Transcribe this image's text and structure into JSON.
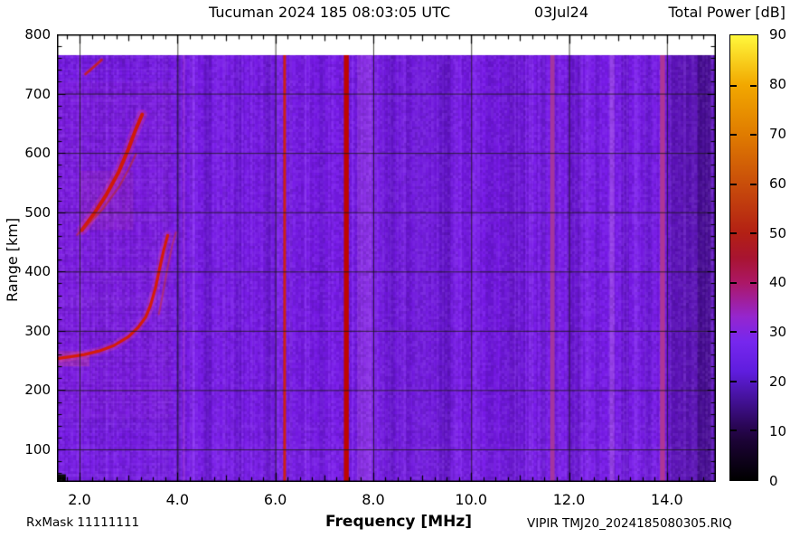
{
  "header": {
    "title": "Tucuman 2024 185 08:03:05 UTC",
    "date": "03Jul24",
    "colorbar_title": "Total Power [dB]"
  },
  "footer": {
    "rxmask": "RxMask 11111111",
    "xlabel": "Frequency [MHz]",
    "filename": "VIPIR  TMJ20_2024185080305.RIQ"
  },
  "ylabel": "Range [km]",
  "chart_data": {
    "type": "heatmap",
    "title": "Tucuman 2024 185 08:03:05 UTC",
    "subtitle": "03Jul24",
    "xlabel": "Frequency [MHz]",
    "ylabel": "Range [km]",
    "zlabel": "Total Power [dB]",
    "x_range_mhz": [
      1.538,
      15.0
    ],
    "y_range_km": [
      45,
      800
    ],
    "data_top_km": 765,
    "grid": true,
    "x_major_ticks": [
      2,
      4,
      6,
      8,
      10,
      12,
      14
    ],
    "x_tick_labels": [
      "2.0",
      "4.0",
      "6.0",
      "8.0",
      "10.0",
      "12.0",
      "14.0"
    ],
    "x_minor_step": 0.25,
    "y_major_ticks": [
      800,
      700,
      600,
      500,
      400,
      300,
      200,
      100
    ],
    "y_tick_labels": [
      "800",
      "700",
      "600",
      "500",
      "400",
      "300",
      "200",
      "100"
    ],
    "y_minor_step": 20,
    "background_db": 22,
    "base_color": "#771AE8",
    "grid_color": "rgba(25,25,18,0.8)",
    "noise_seed": 42,
    "colorbar": {
      "range_db": [
        0,
        90
      ],
      "tick_step": 10,
      "labels": [
        "90",
        "80",
        "70",
        "60",
        "50",
        "40",
        "30",
        "20",
        "10",
        "0"
      ],
      "stops": [
        [
          0,
          "#000000"
        ],
        [
          8,
          "#1C0336"
        ],
        [
          11,
          "#2A0656"
        ],
        [
          22,
          "#5F1DDE"
        ],
        [
          28,
          "#7627EE"
        ],
        [
          33,
          "#9526CE"
        ],
        [
          40,
          "#AC1766"
        ],
        [
          45,
          "#A81430"
        ],
        [
          50,
          "#B32014"
        ],
        [
          60,
          "#C94E0A"
        ],
        [
          70,
          "#E07C00"
        ],
        [
          80,
          "#F2A800"
        ],
        [
          90,
          "#FFF83C"
        ]
      ]
    },
    "shade_bands": [
      {
        "f": 8.9,
        "w": 1.5,
        "c": "#3E0B8E",
        "a": 0.1
      },
      {
        "f": 10.85,
        "w": 0.5,
        "c": "#3E0B8E",
        "a": 0.15
      },
      {
        "f": 14.55,
        "w": 0.92,
        "c": "#2A0660",
        "a": 0.35
      },
      {
        "f": 14.77,
        "w": 0.28,
        "c": "#1E0448",
        "a": 0.3
      },
      {
        "f": 2.03,
        "w": 0.07,
        "c": "#9B45FF",
        "a": 0.3
      },
      {
        "f": 2.55,
        "w": 0.05,
        "c": "#9B45FF",
        "a": 0.18
      },
      {
        "f": 3.05,
        "w": 0.05,
        "c": "#3E0B8E",
        "a": 0.12
      },
      {
        "f": 3.75,
        "w": 0.06,
        "c": "#9B45FF",
        "a": 0.2
      },
      {
        "f": 4.02,
        "w": 0.1,
        "c": "#3E0B8E",
        "a": 0.25
      },
      {
        "f": 4.13,
        "w": 0.05,
        "c": "#C050C8",
        "a": 0.3
      },
      {
        "f": 4.32,
        "w": 0.09,
        "c": "#9B45FF",
        "a": 0.35
      },
      {
        "f": 4.62,
        "w": 0.16,
        "c": "#3E0B8E",
        "a": 0.25
      },
      {
        "f": 4.96,
        "w": 0.07,
        "c": "#9B45FF",
        "a": 0.32
      },
      {
        "f": 5.25,
        "w": 0.12,
        "c": "#3E0B8E",
        "a": 0.18
      },
      {
        "f": 5.52,
        "w": 0.06,
        "c": "#9B45FF",
        "a": 0.26
      },
      {
        "f": 5.85,
        "w": 0.14,
        "c": "#3E0B8E",
        "a": 0.22
      },
      {
        "f": 6.06,
        "w": 0.05,
        "c": "#9B45FF",
        "a": 0.25
      },
      {
        "f": 6.31,
        "w": 0.06,
        "c": "#9B45FF",
        "a": 0.3
      },
      {
        "f": 6.62,
        "w": 0.05,
        "c": "#9B45FF",
        "a": 0.18
      },
      {
        "f": 6.95,
        "w": 0.12,
        "c": "#3E0B8E",
        "a": 0.18
      },
      {
        "f": 7.17,
        "w": 0.05,
        "c": "#9B45FF",
        "a": 0.22
      },
      {
        "f": 7.58,
        "w": 0.05,
        "c": "#9B45FF",
        "a": 0.28
      },
      {
        "f": 7.82,
        "w": 0.3,
        "c": "#A34CE8",
        "a": 0.45
      },
      {
        "f": 8.06,
        "w": 0.06,
        "c": "#9B45FF",
        "a": 0.28
      },
      {
        "f": 8.38,
        "w": 0.12,
        "c": "#3E0B8E",
        "a": 0.15
      },
      {
        "f": 8.64,
        "w": 0.06,
        "c": "#9B45FF",
        "a": 0.22
      },
      {
        "f": 9.12,
        "w": 0.05,
        "c": "#9B45FF",
        "a": 0.18
      },
      {
        "f": 9.45,
        "w": 0.22,
        "c": "#3E0B8E",
        "a": 0.18
      },
      {
        "f": 9.78,
        "w": 0.06,
        "c": "#9B45FF",
        "a": 0.22
      },
      {
        "f": 10.06,
        "w": 0.08,
        "c": "#9B45FF",
        "a": 0.28
      },
      {
        "f": 10.38,
        "w": 0.16,
        "c": "#3E0B8E",
        "a": 0.16
      },
      {
        "f": 11.22,
        "w": 0.1,
        "c": "#9B45FF",
        "a": 0.32
      },
      {
        "f": 11.47,
        "w": 0.1,
        "c": "#3E0B8E",
        "a": 0.2
      },
      {
        "f": 11.79,
        "w": 0.06,
        "c": "#9B45FF",
        "a": 0.28
      },
      {
        "f": 12.12,
        "w": 0.26,
        "c": "#3E0B8E",
        "a": 0.2
      },
      {
        "f": 12.36,
        "w": 0.08,
        "c": "#9B45FF",
        "a": 0.28
      },
      {
        "f": 12.58,
        "w": 0.1,
        "c": "#3E0B8E",
        "a": 0.15
      },
      {
        "f": 12.88,
        "w": 0.1,
        "c": "#AA55E8",
        "a": 0.5
      },
      {
        "f": 13.15,
        "w": 0.15,
        "c": "#3E0B8E",
        "a": 0.2
      },
      {
        "f": 13.37,
        "w": 0.07,
        "c": "#9B45FF",
        "a": 0.3
      },
      {
        "f": 13.62,
        "w": 0.15,
        "c": "#3E0B8E",
        "a": 0.18
      },
      {
        "f": 14.06,
        "w": 0.1,
        "c": "#3E0B8E",
        "a": 0.3
      },
      {
        "f": 14.36,
        "w": 0.06,
        "c": "#9B45FF",
        "a": 0.28
      },
      {
        "f": 14.92,
        "w": 0.05,
        "c": "#9B45FF",
        "a": 0.2
      }
    ],
    "rfi_stripes": [
      {
        "f": 6.19,
        "w": 0.055,
        "c": "#D32208",
        "a": 0.95
      },
      {
        "f": 7.45,
        "w": 0.1,
        "c": "#BE0600",
        "a": 1.0
      },
      {
        "f": 11.66,
        "w": 0.09,
        "c": "#A83898",
        "a": 0.9
      },
      {
        "f": 13.91,
        "w": 0.1,
        "c": "#B03890",
        "a": 0.95
      }
    ],
    "h_bands": [
      {
        "r": [
          45,
          110
        ],
        "c": "#9B45FF",
        "a": 0.1
      },
      {
        "r": [
          130,
          145
        ],
        "c": "#9B45FF",
        "a": 0.1
      },
      {
        "r": [
          483,
          498
        ],
        "c": "#9B45FF",
        "a": 0.07
      }
    ],
    "patches": [
      {
        "f": [
          1.538,
          3.9
        ],
        "r": [
          150,
          720
        ],
        "c": "#FF50A0",
        "a": 0.04
      },
      {
        "f": [
          2.0,
          3.1
        ],
        "r": [
          470,
          570
        ],
        "c": "#E0487C",
        "a": 0.12
      },
      {
        "f": [
          1.538,
          2.2
        ],
        "r": [
          240,
          266
        ],
        "c": "#E0487C",
        "a": 0.3
      },
      {
        "f": [
          1.538,
          1.72
        ],
        "r": [
          45,
          58
        ],
        "c": "#000000",
        "a": 1.0
      }
    ],
    "echo_traces": [
      {
        "name": "F-trace-1hop",
        "glow_c": "rgba(255,70,130,0.22)",
        "glow_w": 9,
        "c": "#D41C0A",
        "w": 3.2,
        "alpha": 1,
        "pts": [
          [
            1.54,
            253
          ],
          [
            1.8,
            256
          ],
          [
            2.1,
            260
          ],
          [
            2.4,
            266
          ],
          [
            2.7,
            275
          ],
          [
            3.0,
            290
          ],
          [
            3.2,
            306
          ],
          [
            3.35,
            323
          ],
          [
            3.45,
            343
          ],
          [
            3.55,
            372
          ],
          [
            3.63,
            403
          ],
          [
            3.72,
            436
          ],
          [
            3.8,
            461
          ]
        ]
      },
      {
        "name": "F-trace-1hop-xmode",
        "glow_c": "rgba(255,70,130,0.12)",
        "glow_w": 6,
        "c": "#C13048",
        "w": 2.0,
        "alpha": 0.6,
        "pts": [
          [
            3.62,
            328
          ],
          [
            3.7,
            362
          ],
          [
            3.79,
            403
          ],
          [
            3.89,
            443
          ],
          [
            3.97,
            466
          ]
        ]
      },
      {
        "name": "F-trace-2hop",
        "glow_c": "rgba(255,60,120,0.25)",
        "glow_w": 11,
        "c": "#D01A08",
        "w": 4.0,
        "alpha": 1,
        "pts": [
          [
            2.05,
            470
          ],
          [
            2.3,
            498
          ],
          [
            2.55,
            530
          ],
          [
            2.8,
            568
          ],
          [
            3.0,
            607
          ],
          [
            3.15,
            640
          ],
          [
            3.28,
            665
          ]
        ]
      },
      {
        "name": "F-trace-2hop-b",
        "glow_c": "rgba(255,60,120,0.10)",
        "glow_w": 6,
        "c": "#C22A1E",
        "w": 2.2,
        "alpha": 0.55,
        "pts": [
          [
            1.95,
            462
          ],
          [
            2.2,
            482
          ],
          [
            2.5,
            508
          ],
          [
            2.8,
            542
          ],
          [
            3.0,
            572
          ],
          [
            3.15,
            598
          ]
        ]
      },
      {
        "name": "F-trace-3hop",
        "glow_c": "rgba(255,60,120,0.15)",
        "glow_w": 6,
        "c": "#CC2010",
        "w": 2.6,
        "alpha": 0.85,
        "pts": [
          [
            2.12,
            733
          ],
          [
            2.3,
            746
          ],
          [
            2.45,
            757
          ]
        ]
      }
    ]
  }
}
